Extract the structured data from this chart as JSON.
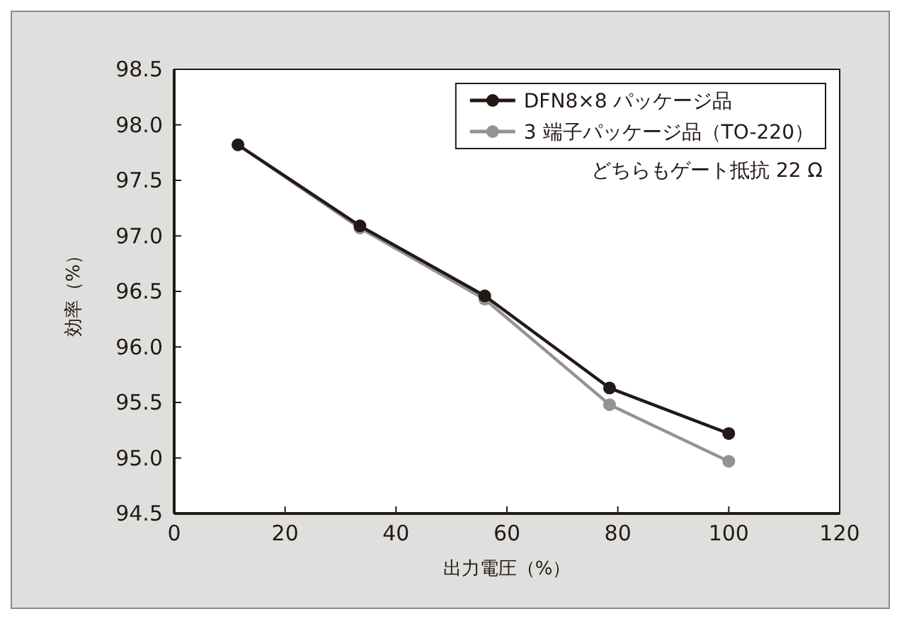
{
  "chart_data": {
    "type": "line",
    "xlabel": "出力電圧（%）",
    "ylabel": "効率（%）",
    "annotations": [
      "どちらもゲート抵抗 22 Ω"
    ],
    "series": [
      {
        "name": "DFN8×8 パッケージ品",
        "color": "#231815",
        "x": [
          11.5,
          33.5,
          56,
          78.5,
          100
        ],
        "values": [
          97.82,
          97.09,
          96.46,
          95.63,
          95.22
        ]
      },
      {
        "name": "3 端子パッケージ品（TO-220）",
        "color": "#939393",
        "x": [
          11.5,
          33.5,
          56,
          78.5,
          100
        ],
        "values": [
          97.82,
          97.07,
          96.43,
          95.48,
          94.97
        ]
      }
    ],
    "xlim": [
      0,
      120
    ],
    "xticks": [
      0,
      20,
      40,
      60,
      80,
      100,
      120
    ],
    "ylim": [
      94.5,
      98.5
    ],
    "yticks": [
      94.5,
      {
        "value": 95,
        "label": "95.0"
      },
      95.5,
      {
        "value": 96,
        "label": "96.0"
      },
      96.5,
      {
        "value": 97,
        "label": "97.0"
      },
      97.5,
      {
        "value": 98,
        "label": "98.0"
      },
      98.5
    ],
    "legend": "top right",
    "marker": "circle",
    "line_style": "solid",
    "grid": false
  }
}
